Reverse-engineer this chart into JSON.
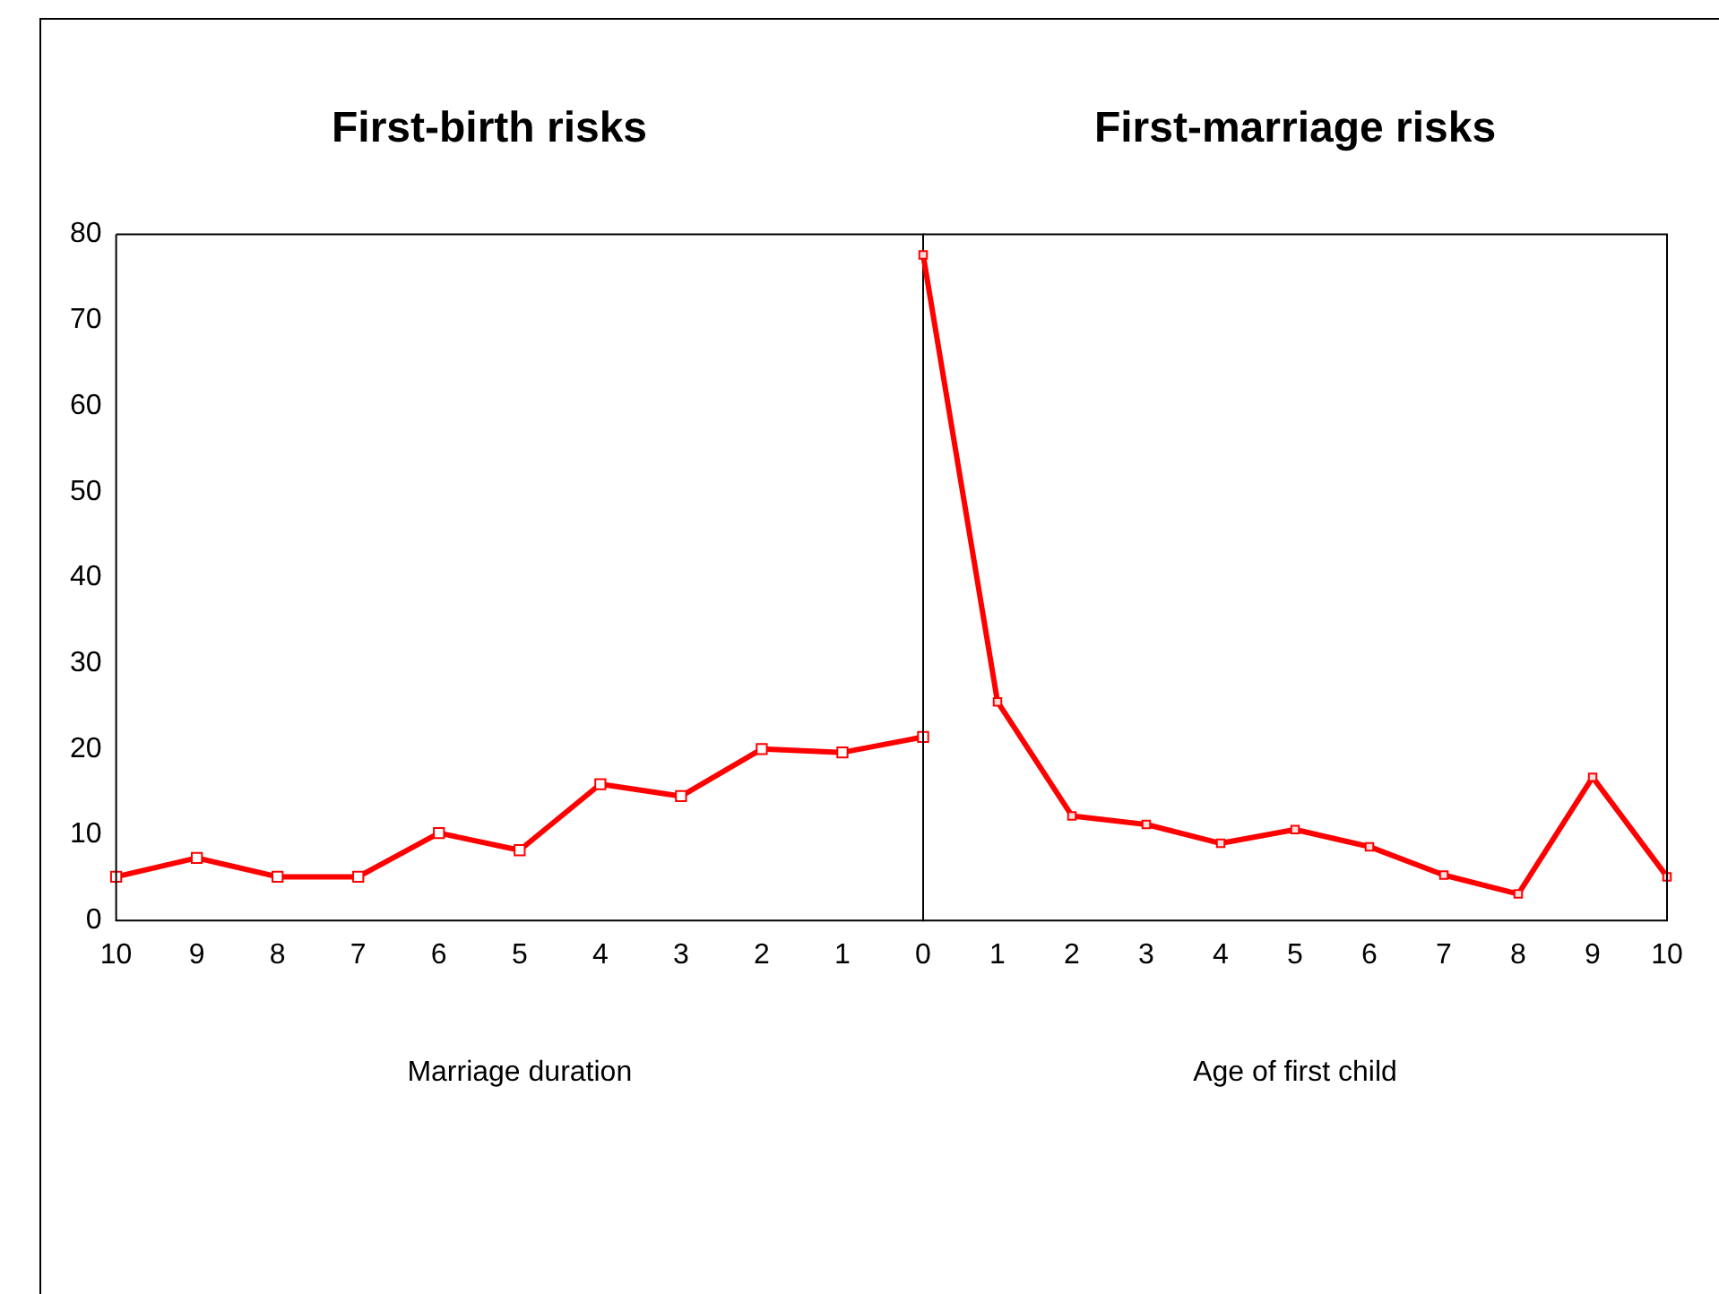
{
  "chart_data": [
    {
      "type": "line",
      "title": "First-birth risks",
      "xlabel": "Marriage duration",
      "categories": [
        "10",
        "9",
        "8",
        "7",
        "6",
        "5",
        "4",
        "3",
        "2",
        "1",
        null
      ],
      "series": [
        {
          "color": "#ff0000",
          "values": [
            5.1,
            7.3,
            5.1,
            5.1,
            10.2,
            8.2,
            15.9,
            14.5,
            20,
            19.6,
            21.4
          ]
        }
      ],
      "ylim": [
        0,
        80
      ],
      "yticks": [
        0,
        10,
        20,
        30,
        40,
        50,
        60,
        70,
        80
      ],
      "marker": "square",
      "line_style": "solid"
    },
    {
      "type": "line",
      "title": "First-marriage risks",
      "xlabel": "Age of first child",
      "categories": [
        "0",
        "1",
        "2",
        "3",
        "4",
        "5",
        "6",
        "7",
        "8",
        "9",
        "10"
      ],
      "series": [
        {
          "color": "#ff0000",
          "values": [
            77.6,
            25.5,
            12.2,
            11.2,
            9,
            10.6,
            8.6,
            5.3,
            3.1,
            16.7,
            5.1
          ]
        }
      ],
      "ylim": [
        0,
        80
      ],
      "yticks": [
        0,
        10,
        20,
        30,
        40,
        50,
        60,
        70,
        80
      ],
      "tick_labels": "x",
      "marker": "square",
      "line_style": "solid"
    }
  ]
}
